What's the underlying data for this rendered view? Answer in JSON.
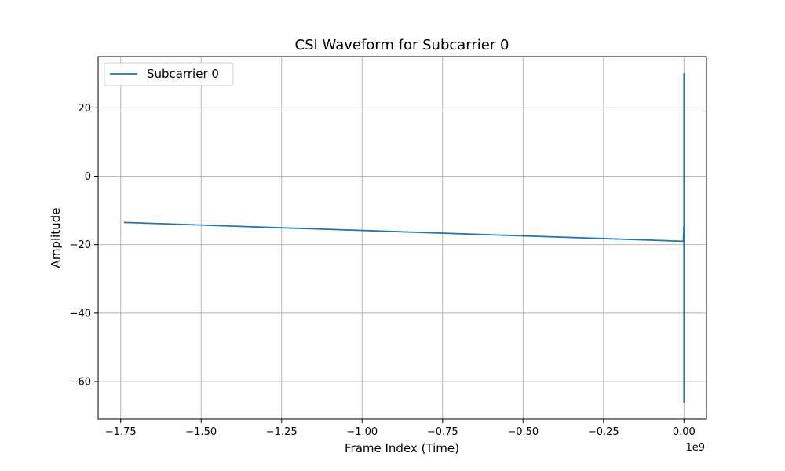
{
  "chart_data": {
    "type": "line",
    "title": "CSI Waveform for Subcarrier 0",
    "xlabel": "Frame Index (Time)",
    "ylabel": "Amplitude",
    "x_offset_text": "1e9",
    "xlim": [
      -1.82,
      0.07
    ],
    "ylim": [
      -71,
      35
    ],
    "x_ticks": [
      -1.75,
      -1.5,
      -1.25,
      -1.0,
      -0.75,
      -0.5,
      -0.25,
      0.0
    ],
    "x_tick_labels": [
      "−1.75",
      "−1.50",
      "−1.25",
      "−1.00",
      "−0.75",
      "−0.50",
      "−0.25",
      "0.00"
    ],
    "y_ticks": [
      -60,
      -40,
      -20,
      0,
      20
    ],
    "y_tick_labels": [
      "−60",
      "−40",
      "−20",
      "0",
      "20"
    ],
    "grid": true,
    "legend_position": "top-left",
    "series": [
      {
        "name": "Subcarrier 0",
        "color": "#1f77b4",
        "x": [
          -1.74,
          -0.002,
          0.0,
          0.0,
          0.0,
          0.0,
          0.0,
          0.0
        ],
        "y": [
          -13.5,
          -19.0,
          -14.0,
          30.0,
          -66.0,
          28.0,
          -62.0,
          -18.5
        ]
      }
    ]
  }
}
